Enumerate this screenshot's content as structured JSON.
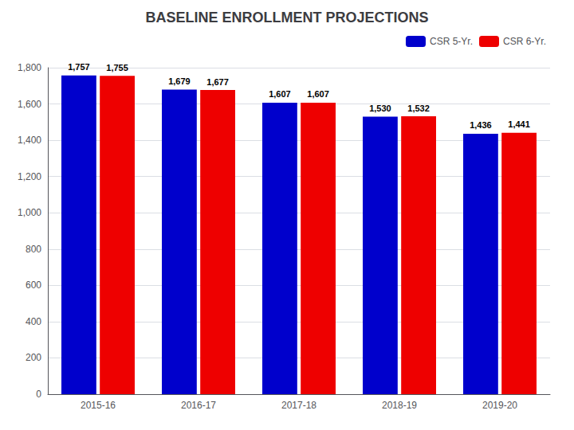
{
  "chart_data": {
    "type": "bar",
    "title": "BASELINE ENROLLMENT PROJECTIONS",
    "categories": [
      "2015-16",
      "2016-17",
      "2017-18",
      "2018-19",
      "2019-20"
    ],
    "series": [
      {
        "name": "CSR 5-Yr.",
        "color": "#0000cc",
        "values": [
          1757,
          1679,
          1607,
          1530,
          1436
        ],
        "value_labels": [
          "1,757",
          "1,679",
          "1,607",
          "1,530",
          "1,436"
        ]
      },
      {
        "name": "CSR 6-Yr.",
        "color": "#ee0000",
        "values": [
          1755,
          1677,
          1607,
          1532,
          1441
        ],
        "value_labels": [
          "1,755",
          "1,677",
          "1,607",
          "1,532",
          "1,441"
        ]
      }
    ],
    "ylim": [
      0,
      1800
    ],
    "yticks": [
      0,
      200,
      400,
      600,
      800,
      {
        "value": 1000,
        "label": "1,000"
      },
      {
        "value": 1200,
        "label": "1,200"
      },
      {
        "value": 1400,
        "label": "1,400"
      },
      {
        "value": 1600,
        "label": "1,600"
      },
      {
        "value": 1800,
        "label": "1,800"
      }
    ],
    "grid": true,
    "legend": "upper right",
    "data_labels": true
  }
}
